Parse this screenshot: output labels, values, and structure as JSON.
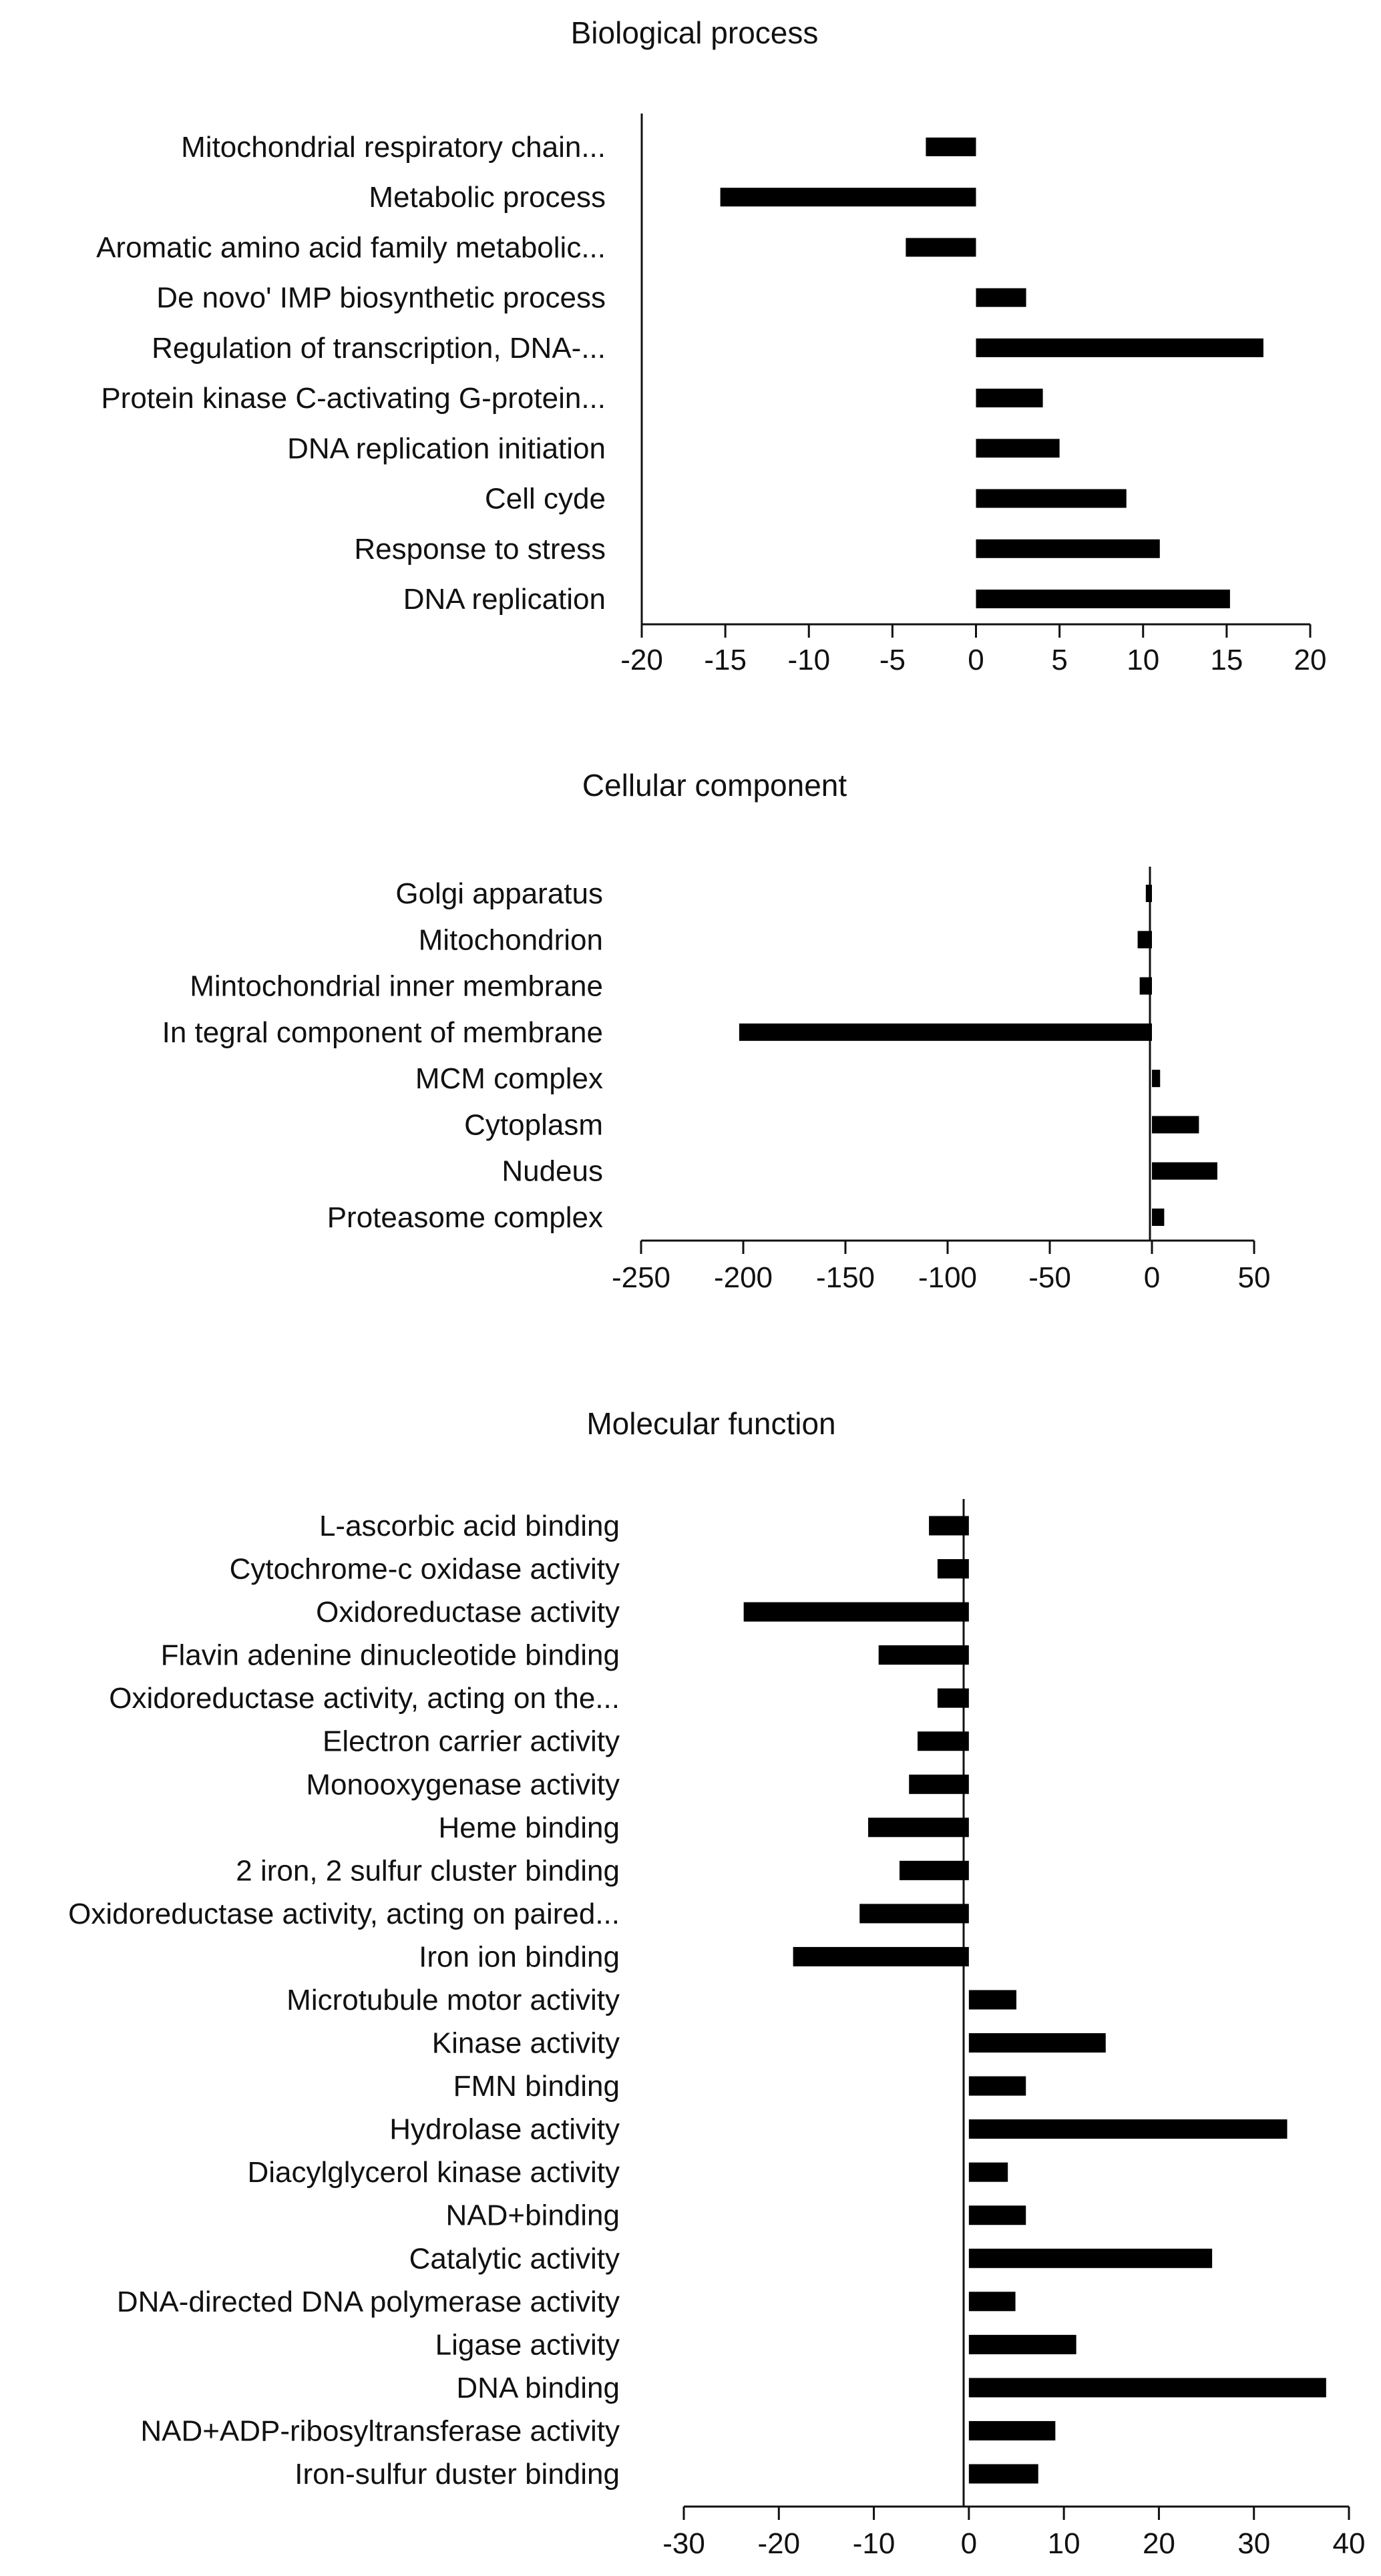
{
  "chart_data": [
    {
      "type": "bar",
      "orientation": "horizontal",
      "title": "Biological process",
      "categories": [
        "Mitochondrial respiratory chain...",
        "Metabolic process",
        "Aromatic amino acid family metabolic...",
        "De novo' IMP biosynthetic process",
        "Regulation of transcription, DNA-...",
        "Protein kinase C-activating G-protein...",
        "DNA replication initiation",
        "Cell cyde",
        "Response to stress",
        "DNA replication"
      ],
      "values": [
        -3,
        -15.3,
        -4.2,
        3,
        17.2,
        4,
        5,
        9,
        11,
        15.2
      ],
      "ticks": [
        "-20",
        "-15",
        "-10",
        "-5",
        "0",
        "5",
        "10",
        "15",
        "20"
      ],
      "tick_values": [
        -20,
        -15,
        -10,
        -5,
        0,
        5,
        10,
        15,
        20
      ],
      "xlim": [
        -20,
        20
      ],
      "xlabel": "",
      "ylabel": "",
      "grid": false
    },
    {
      "type": "bar",
      "orientation": "horizontal",
      "title": "Cellular component",
      "categories": [
        "Golgi apparatus",
        "Mitochondrion",
        "Mintochondrial inner membrane",
        "In tegral component of membrane",
        "MCM complex",
        "Cytoplasm",
        "Nudeus",
        "Proteasome complex"
      ],
      "values": [
        -3,
        -7,
        -6,
        -202,
        4,
        23,
        32,
        6
      ],
      "ticks": [
        "-250",
        "-200",
        "-150",
        "-100",
        "-50",
        "0",
        "50"
      ],
      "tick_values": [
        -250,
        -200,
        -150,
        -100,
        -50,
        0,
        50
      ],
      "xlim": [
        -250,
        50
      ],
      "xlabel": "",
      "ylabel": "",
      "grid": false
    },
    {
      "type": "bar",
      "orientation": "horizontal",
      "title": "Molecular function",
      "categories": [
        "L-ascorbic acid binding",
        "Cytochrome-c oxidase activity",
        "Oxidoreductase activity",
        "Flavin adenine dinucleotide binding",
        "Oxidoreductase activity, acting on the...",
        "Electron carrier activity",
        "Monooxygenase activity",
        "Heme binding",
        "2 iron, 2 sulfur cluster binding",
        "Oxidoreductase activity, acting on paired...",
        "Iron ion binding",
        "Microtubule motor activity",
        "Kinase activity",
        "FMN binding",
        "Hydrolase activity",
        "Diacylglycerol kinase activity",
        "NAD+binding",
        "Catalytic activity",
        "DNA-directed DNA polymerase activity",
        "Ligase activity",
        "DNA binding",
        "NAD+ADP-ribosyltransferase activity",
        "Iron-sulfur duster binding"
      ],
      "values": [
        -4.2,
        -3.3,
        -23.7,
        -9.5,
        -3.3,
        -5.4,
        -6.3,
        -10.6,
        -7.3,
        -11.5,
        -18.5,
        5,
        14.4,
        6,
        33.5,
        4.1,
        6,
        25.6,
        4.9,
        11.3,
        37.6,
        9.1,
        7.3
      ],
      "ticks": [
        "-30",
        "-20",
        "-10",
        "0",
        "10",
        "20",
        "30",
        "40"
      ],
      "tick_values": [
        -30,
        -20,
        -10,
        0,
        10,
        20,
        30,
        40
      ],
      "xlim": [
        -30,
        40
      ],
      "xlabel": "",
      "ylabel": "",
      "grid": false
    }
  ]
}
